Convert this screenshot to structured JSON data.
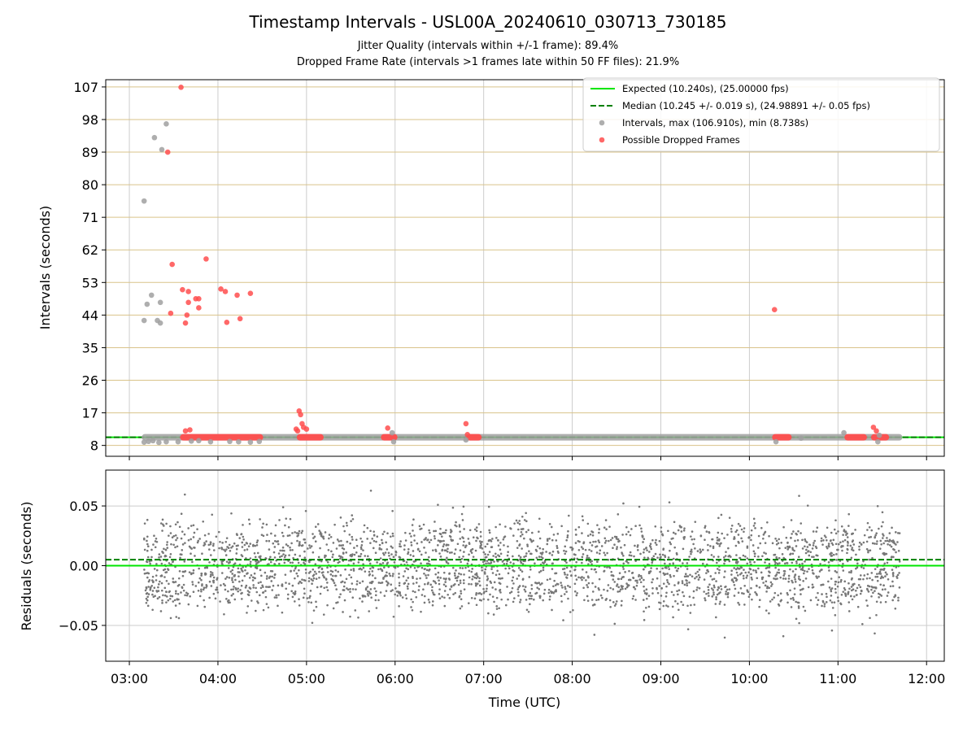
{
  "figure": {
    "title": "Timestamp Intervals - USL00A_20240610_030713_730185",
    "subtitle_1": "Jitter Quality (intervals within +/-1 frame): 89.4%",
    "subtitle_2": "Dropped Frame Rate (intervals >1 frames late within 50 FF files): 21.9%"
  },
  "colors": {
    "expected": "#00e600",
    "median": "#008000",
    "interval": "#a0a0a0",
    "dropped": "#ff4d4d",
    "residual": "#777777",
    "hgrid": "#d9c38a",
    "vgrid": "#cccccc"
  },
  "chart_data": [
    {
      "type": "scatter",
      "panel": "top",
      "xlabel": "",
      "ylabel": "Intervals (seconds)",
      "xlim": [
        "02:44",
        "12:12"
      ],
      "ylim": [
        5,
        109
      ],
      "yticks": [
        8,
        17,
        26,
        35,
        44,
        53,
        62,
        71,
        80,
        89,
        98,
        107
      ],
      "xticks": [
        "03:00",
        "04:00",
        "05:00",
        "06:00",
        "07:00",
        "08:00",
        "09:00",
        "10:00",
        "11:00",
        "12:00"
      ],
      "grid": true,
      "legend_position": "top-right",
      "legend": [
        "Expected (10.240s), (25.00000 fps)",
        "Median (10.245 +/- 0.019 s), (24.98891 +/- 0.05 fps)",
        "Intervals, max (106.910s), min (8.738s)",
        "Possible Dropped Frames"
      ],
      "expected_line": 10.24,
      "median_line": 10.245,
      "band_series": [
        {
          "name": "Intervals, max (106.910s), min (8.738s)",
          "from": "03:10",
          "to": "11:42",
          "y": 10.24
        },
        {
          "name": "Possible Dropped Frames",
          "from": "03:36",
          "to": "04:29",
          "y": 10.24
        },
        {
          "name": "Possible Dropped Frames",
          "from": "04:55",
          "to": "05:10",
          "y": 10.24
        },
        {
          "name": "Possible Dropped Frames",
          "from": "05:52",
          "to": "06:00",
          "y": 10.24
        },
        {
          "name": "Possible Dropped Frames",
          "from": "06:50",
          "to": "06:57",
          "y": 10.24
        },
        {
          "name": "Possible Dropped Frames",
          "from": "10:17",
          "to": "10:27",
          "y": 10.24
        },
        {
          "name": "Possible Dropped Frames",
          "from": "11:06",
          "to": "11:18",
          "y": 10.24
        },
        {
          "name": "Possible Dropped Frames",
          "from": "11:24",
          "to": "11:33",
          "y": 10.24
        }
      ],
      "series": [
        {
          "name": "Intervals, max (106.910s), min (8.738s)",
          "points": [
            [
              "03:10",
              75.5
            ],
            [
              "03:10",
              42.5
            ],
            [
              "03:12",
              47
            ],
            [
              "03:15",
              49.5
            ],
            [
              "03:17",
              93
            ],
            [
              "03:19",
              42.5
            ],
            [
              "03:21",
              41.8
            ],
            [
              "03:21",
              47.5
            ],
            [
              "03:22",
              89.7
            ],
            [
              "03:25",
              96.8
            ],
            [
              "03:10",
              8.9
            ],
            [
              "03:13",
              9.1
            ],
            [
              "03:16",
              9.3
            ],
            [
              "03:20",
              8.8
            ],
            [
              "03:25",
              9.0
            ],
            [
              "03:33",
              9.0
            ],
            [
              "03:42",
              9.2
            ],
            [
              "03:47",
              9.3
            ],
            [
              "03:55",
              9.0
            ],
            [
              "04:08",
              9.1
            ],
            [
              "04:14",
              9.0
            ],
            [
              "04:22",
              8.9
            ],
            [
              "04:28",
              9.1
            ],
            [
              "05:58",
              11.5
            ],
            [
              "05:59",
              9.0
            ],
            [
              "06:48",
              9.5
            ],
            [
              "10:18",
              9.0
            ],
            [
              "10:35",
              10.0
            ],
            [
              "11:04",
              11.5
            ],
            [
              "11:27",
              9.0
            ],
            [
              "11:28",
              10.8
            ]
          ]
        },
        {
          "name": "Possible Dropped Frames",
          "points": [
            [
              "03:35",
              106.9
            ],
            [
              "03:26",
              89.0
            ],
            [
              "03:29",
              58.0
            ],
            [
              "03:36",
              51.0
            ],
            [
              "03:40",
              50.5
            ],
            [
              "03:45",
              48.5
            ],
            [
              "03:47",
              48.5
            ],
            [
              "03:52",
              59.5
            ],
            [
              "04:02",
              51.2
            ],
            [
              "04:05",
              50.5
            ],
            [
              "04:13",
              49.5
            ],
            [
              "04:22",
              50.0
            ],
            [
              "03:28",
              44.5
            ],
            [
              "03:38",
              41.8
            ],
            [
              "03:39",
              44.0
            ],
            [
              "03:40",
              47.5
            ],
            [
              "03:47",
              46.0
            ],
            [
              "04:06",
              42.0
            ],
            [
              "04:15",
              43.0
            ],
            [
              "03:38",
              12.0
            ],
            [
              "03:41",
              12.3
            ],
            [
              "04:55",
              17.5
            ],
            [
              "04:56",
              16.5
            ],
            [
              "04:57",
              14.0
            ],
            [
              "04:53",
              12.5
            ],
            [
              "04:58",
              13.0
            ],
            [
              "05:00",
              12.5
            ],
            [
              "04:54",
              12.0
            ],
            [
              "05:55",
              12.8
            ],
            [
              "06:48",
              14.0
            ],
            [
              "06:49",
              11.0
            ],
            [
              "10:17",
              45.5
            ],
            [
              "11:24",
              13.0
            ],
            [
              "11:26",
              12.0
            ]
          ]
        }
      ]
    },
    {
      "type": "scatter",
      "panel": "bottom",
      "xlabel": "Time (UTC)",
      "ylabel": "Residuals (seconds)",
      "xlim": [
        "02:44",
        "12:12"
      ],
      "ylim": [
        -0.08,
        0.08
      ],
      "yticks": [
        0.05,
        0.0,
        -0.05
      ],
      "ytick_labels": [
        "0.05",
        "0.00",
        "−0.05"
      ],
      "xticks": [
        "03:00",
        "04:00",
        "05:00",
        "06:00",
        "07:00",
        "08:00",
        "09:00",
        "10:00",
        "11:00",
        "12:00"
      ],
      "grid": true,
      "expected_line": 0.0,
      "median_line": 0.005,
      "series": [
        {
          "name": "Residuals",
          "span": [
            "03:10",
            "11:42"
          ],
          "n_points": 3000,
          "mean": 0.005,
          "clusters": [
            0.02,
            0.0,
            -0.02
          ],
          "min": -0.079,
          "max": 0.078
        }
      ]
    }
  ]
}
